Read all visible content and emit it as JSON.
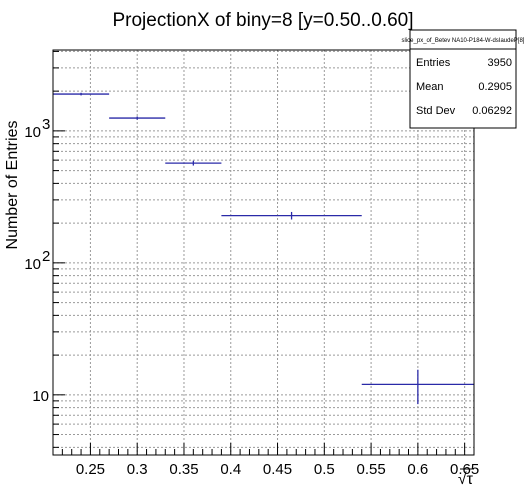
{
  "chart_data": {
    "type": "histogram",
    "title": "ProjectionX of biny=8 [y=0.50..0.60]",
    "xlabel": "√τ",
    "ylabel": "Number of Entries",
    "xlim": [
      0.21,
      0.66
    ],
    "ylim": [
      3.5,
      4100
    ],
    "log_y": true,
    "grid": true,
    "x_ticks": [
      0.25,
      0.3,
      0.35,
      0.4,
      0.45,
      0.5,
      0.55,
      0.6,
      0.65
    ],
    "x_tick_labels": [
      "0.25",
      "0.3",
      "0.35",
      "0.4",
      "0.45",
      "0.5",
      "0.55",
      "0.6",
      "0.65"
    ],
    "y_ticks": [
      10,
      100,
      1000
    ],
    "y_tick_labels": [
      "10",
      "10",
      "10"
    ],
    "y_tick_exponents": [
      "",
      "2",
      "3"
    ],
    "series_color": "#2a2aa8",
    "bins": [
      {
        "x_low": 0.21,
        "x_high": 0.27,
        "center": 0.24,
        "value": 1900,
        "err": 44
      },
      {
        "x_low": 0.27,
        "x_high": 0.33,
        "center": 0.3,
        "value": 1250,
        "err": 35
      },
      {
        "x_low": 0.33,
        "x_high": 0.39,
        "center": 0.36,
        "value": 570,
        "err": 24
      },
      {
        "x_low": 0.39,
        "x_high": 0.54,
        "center": 0.465,
        "value": 228,
        "err": 15
      },
      {
        "x_low": 0.54,
        "x_high": 0.66,
        "center": 0.6,
        "value": 12,
        "err": 3.5
      }
    ],
    "stats": {
      "name": "slice_px_of_Betev NA10-P184-W-dsIaudeP[8]",
      "rows": [
        {
          "label": "Entries",
          "value": "3950"
        },
        {
          "label": "Mean",
          "value": "0.2905"
        },
        {
          "label": "Std Dev",
          "value": "0.06292"
        }
      ]
    }
  }
}
